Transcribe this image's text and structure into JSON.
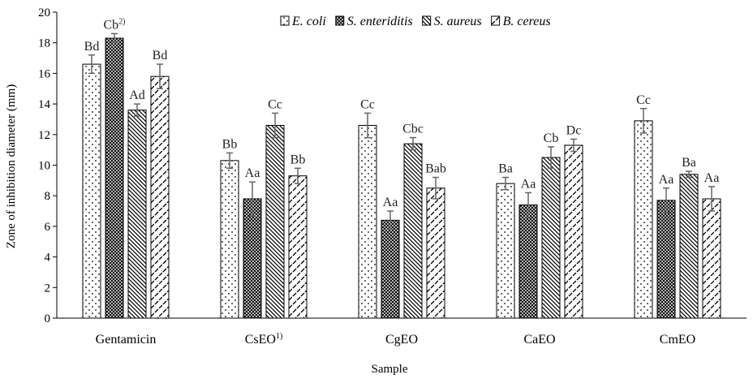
{
  "chart_data": {
    "type": "bar",
    "title": "",
    "xlabel": "Sample",
    "ylabel": "Zone of inhibition diameter (mm)",
    "ylim": [
      0,
      20
    ],
    "yticks": [
      0,
      2,
      4,
      6,
      8,
      10,
      12,
      14,
      16,
      18,
      20
    ],
    "grid": false,
    "legend_position": "top-right",
    "categories": [
      {
        "name": "Gentamicin",
        "sup": ""
      },
      {
        "name": "CsEO",
        "sup": "1)"
      },
      {
        "name": "CgEO",
        "sup": ""
      },
      {
        "name": "CaEO",
        "sup": ""
      },
      {
        "name": "CmEO",
        "sup": ""
      }
    ],
    "series": [
      {
        "name": "E. coli",
        "pattern": "dots",
        "values": [
          16.6,
          10.3,
          12.6,
          8.8,
          12.9
        ],
        "errors": [
          0.6,
          0.5,
          0.8,
          0.4,
          0.8
        ],
        "labels": [
          {
            "text": "Bd",
            "sup": ""
          },
          {
            "text": "Bb",
            "sup": ""
          },
          {
            "text": "Cc",
            "sup": ""
          },
          {
            "text": "Ba",
            "sup": ""
          },
          {
            "text": "Cc",
            "sup": ""
          }
        ]
      },
      {
        "name": "S. enteriditis",
        "pattern": "crosshatch",
        "values": [
          18.3,
          7.8,
          6.4,
          7.4,
          7.7
        ],
        "errors": [
          0.3,
          1.1,
          0.6,
          0.8,
          0.8
        ],
        "labels": [
          {
            "text": "Cb",
            "sup": "2)"
          },
          {
            "text": "Aa",
            "sup": ""
          },
          {
            "text": "Aa",
            "sup": ""
          },
          {
            "text": "Aa",
            "sup": ""
          },
          {
            "text": "Aa",
            "sup": ""
          }
        ]
      },
      {
        "name": "S. aureus",
        "pattern": "diagonal",
        "values": [
          13.6,
          12.6,
          11.4,
          10.5,
          9.4
        ],
        "errors": [
          0.4,
          0.8,
          0.4,
          0.7,
          0.2
        ],
        "labels": [
          {
            "text": "Ad",
            "sup": ""
          },
          {
            "text": "Cc",
            "sup": ""
          },
          {
            "text": "Cbc",
            "sup": ""
          },
          {
            "text": "Cb",
            "sup": ""
          },
          {
            "text": "Ba",
            "sup": ""
          }
        ]
      },
      {
        "name": "B. cereus",
        "pattern": "dashes",
        "values": [
          15.8,
          9.3,
          8.5,
          11.3,
          7.8
        ],
        "errors": [
          0.8,
          0.5,
          0.7,
          0.4,
          0.8
        ],
        "labels": [
          {
            "text": "Bd",
            "sup": ""
          },
          {
            "text": "Bb",
            "sup": ""
          },
          {
            "text": "Bab",
            "sup": ""
          },
          {
            "text": "Dc",
            "sup": ""
          },
          {
            "text": "Aa",
            "sup": ""
          }
        ]
      }
    ]
  }
}
